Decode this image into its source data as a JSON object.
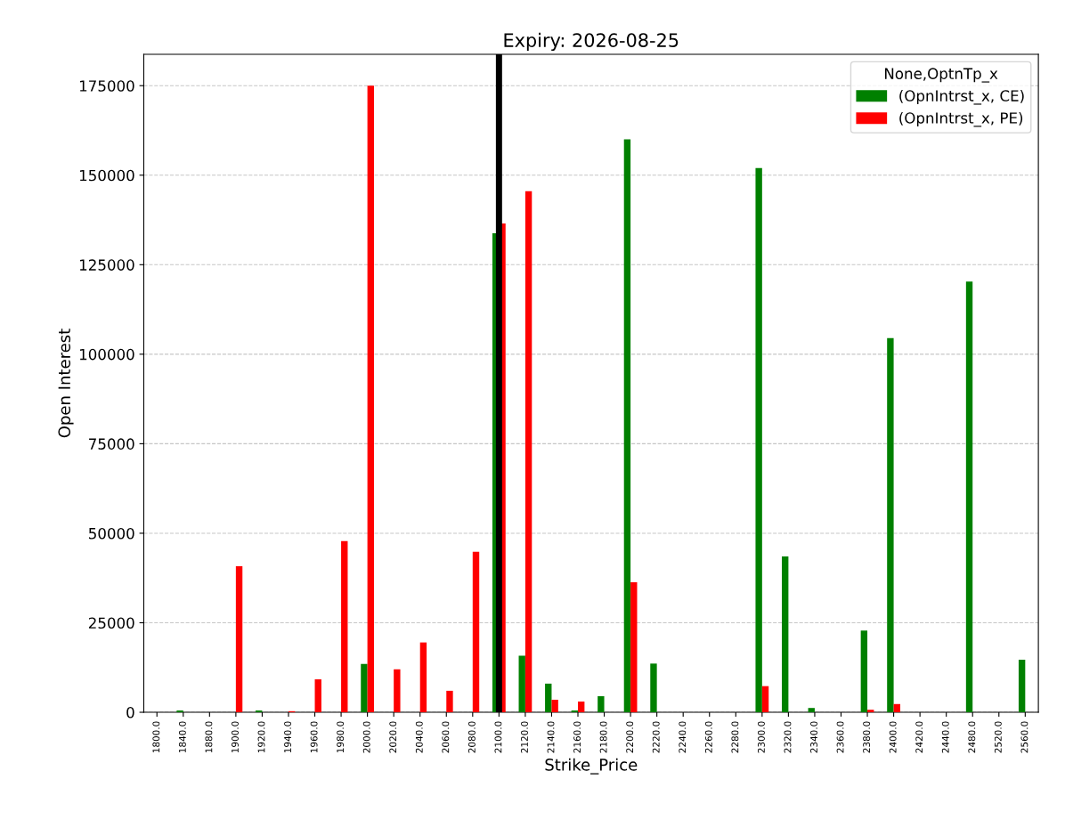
{
  "chart_data": {
    "type": "bar",
    "title": "Expiry: 2026-08-25",
    "xlabel": "Strike_Price",
    "ylabel": "Open Interest",
    "legend_title": "None,OptnTp_x",
    "categories": [
      "1800.0",
      "1840.0",
      "1880.0",
      "1900.0",
      "1920.0",
      "1940.0",
      "1960.0",
      "1980.0",
      "2000.0",
      "2020.0",
      "2040.0",
      "2060.0",
      "2080.0",
      "2100.0",
      "2120.0",
      "2140.0",
      "2160.0",
      "2180.0",
      "2200.0",
      "2220.0",
      "2240.0",
      "2260.0",
      "2280.0",
      "2300.0",
      "2320.0",
      "2340.0",
      "2360.0",
      "2380.0",
      "2400.0",
      "2420.0",
      "2440.0",
      "2480.0",
      "2520.0",
      "2560.0"
    ],
    "series": [
      {
        "name": "(OpnIntrst_x, CE)",
        "color": "#008000",
        "values": [
          0,
          500,
          0,
          0,
          500,
          0,
          0,
          0,
          13500,
          0,
          0,
          0,
          0,
          133800,
          15800,
          8000,
          500,
          4500,
          160000,
          13600,
          0,
          0,
          0,
          152000,
          43500,
          1200,
          0,
          22800,
          104500,
          0,
          0,
          120300,
          0,
          14700
        ]
      },
      {
        "name": "(OpnIntrst_x, PE)",
        "color": "#ff0000",
        "values": [
          0,
          0,
          0,
          40800,
          0,
          300,
          9200,
          47800,
          175000,
          12000,
          19500,
          6000,
          44800,
          136500,
          145500,
          3500,
          3000,
          0,
          36300,
          0,
          0,
          0,
          0,
          7300,
          0,
          0,
          0,
          700,
          2300,
          0,
          0,
          0,
          0,
          0
        ]
      }
    ],
    "ylim": [
      0,
      183750
    ],
    "yticks": [
      0,
      25000,
      50000,
      75000,
      100000,
      125000,
      150000,
      175000
    ],
    "ref_lines": [
      {
        "axis": "x",
        "value": "2100.0",
        "color": "#000000"
      }
    ],
    "grid": "y",
    "legend": "top right"
  }
}
